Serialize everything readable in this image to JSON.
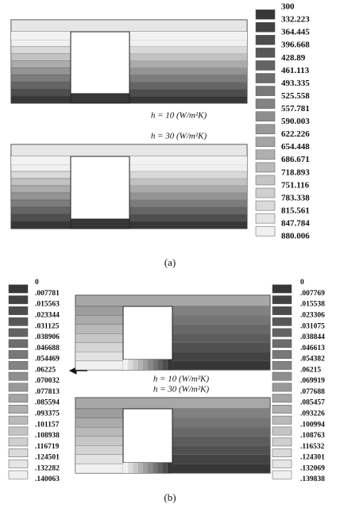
{
  "panel_a": {
    "legend": [
      "300",
      "332.223",
      "364.445",
      "396.668",
      "428.89",
      "461.113",
      "493.335",
      "525.558",
      "557.781",
      "590.003",
      "622.226",
      "654.448",
      "686.671",
      "718.893",
      "751.116",
      "783.338",
      "815.561",
      "847.784",
      "880.006"
    ],
    "plot_labels": [
      "h = 10 (W/m²K)",
      "h = 30 (W/m²K)"
    ],
    "caption": "(a)"
  },
  "panel_b": {
    "legend_left": [
      "0",
      ".007781",
      ".015563",
      ".023344",
      ".031125",
      ".038906",
      ".046688",
      ".054469",
      ".06225",
      ".070032",
      ".077813",
      ".085594",
      ".093375",
      ".101157",
      ".108938",
      ".116719",
      ".124501",
      ".132282",
      ".140063"
    ],
    "legend_right": [
      "0",
      ".007769",
      ".015538",
      ".023306",
      ".031075",
      ".038844",
      ".046613",
      ".054382",
      ".06215",
      ".069919",
      ".077688",
      ".085457",
      ".093226",
      ".100994",
      ".108763",
      ".116532",
      ".124301",
      ".132069",
      ".139838"
    ],
    "plot_labels": [
      "h = 10 (W/m²K)",
      "h = 30 (W/m²K)"
    ],
    "caption": "(b)"
  }
}
